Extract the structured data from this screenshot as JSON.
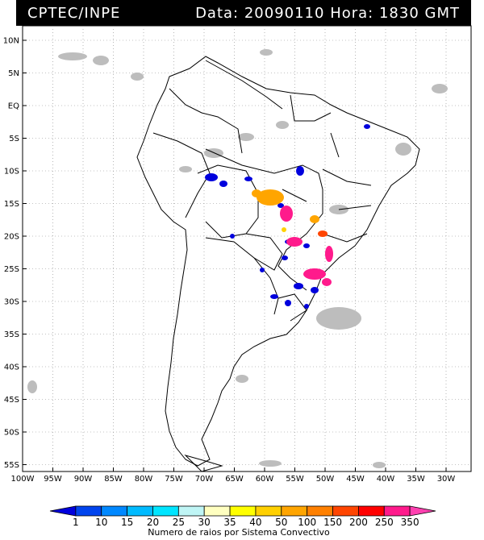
{
  "header": {
    "org": "CPTEC/INPE",
    "date_label": "Data:",
    "date": "20090110",
    "hour_label": "Hora:",
    "hour": "1830 GMT"
  },
  "lat_ticks": [
    "10N",
    "5N",
    "EQ",
    "5S",
    "10S",
    "15S",
    "20S",
    "25S",
    "30S",
    "35S",
    "40S",
    "45S",
    "50S",
    "55S"
  ],
  "lon_ticks": [
    "100W",
    "95W",
    "90W",
    "85W",
    "80W",
    "75W",
    "70W",
    "65W",
    "60W",
    "55W",
    "50W",
    "45W",
    "40W",
    "35W",
    "30W"
  ],
  "colorbar": {
    "labels": [
      "1",
      "10",
      "15",
      "20",
      "25",
      "30",
      "35",
      "40",
      "50",
      "100",
      "150",
      "200",
      "250",
      "350"
    ],
    "colors": [
      "#0000dd",
      "#0044ee",
      "#0088ff",
      "#00bbff",
      "#00e5ff",
      "#bff5f5",
      "#ffffc0",
      "#ffff00",
      "#ffd000",
      "#ffa500",
      "#ff8000",
      "#ff4500",
      "#ff0000",
      "#ff1a8c",
      "#ff40b0"
    ],
    "title": "Numero de raios por Sistema Convectivo"
  },
  "colors": {
    "cloud": "#bdbdbd",
    "border": "#000000",
    "grid": "#888888"
  }
}
